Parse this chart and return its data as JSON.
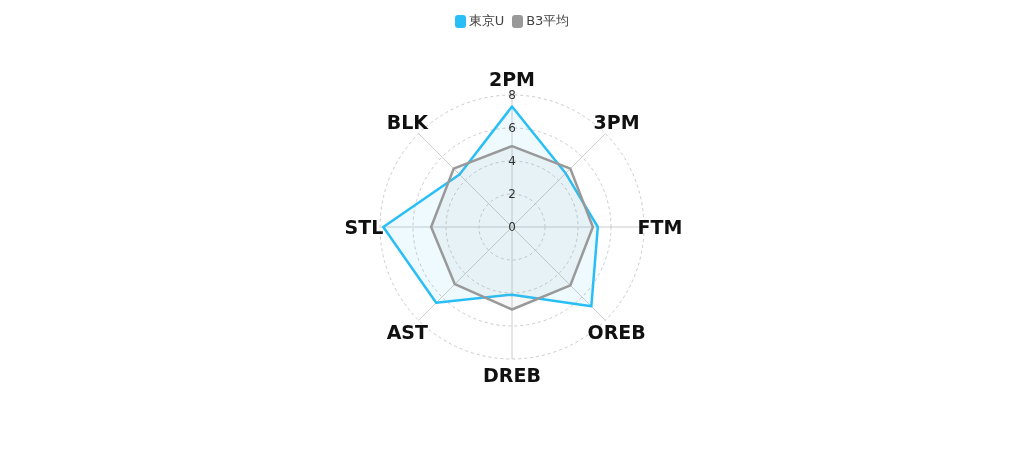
{
  "chart_data": {
    "type": "radar",
    "categories": [
      "2PM",
      "3PM",
      "FTM",
      "OREB",
      "DREB",
      "AST",
      "STL",
      "BLK"
    ],
    "series": [
      {
        "name": "東京U",
        "color": "#29bff6",
        "values": [
          7.3,
          4.6,
          5.2,
          6.8,
          4.1,
          6.5,
          7.8,
          4.5
        ]
      },
      {
        "name": "B3平均",
        "color": "#999999",
        "values": [
          4.9,
          5.0,
          4.9,
          5.0,
          5.0,
          4.9,
          4.9,
          5.0
        ]
      }
    ],
    "ylim": [
      0,
      8
    ],
    "yticks": [
      0,
      2,
      4,
      6,
      8
    ],
    "grid": true,
    "legend": "top"
  }
}
